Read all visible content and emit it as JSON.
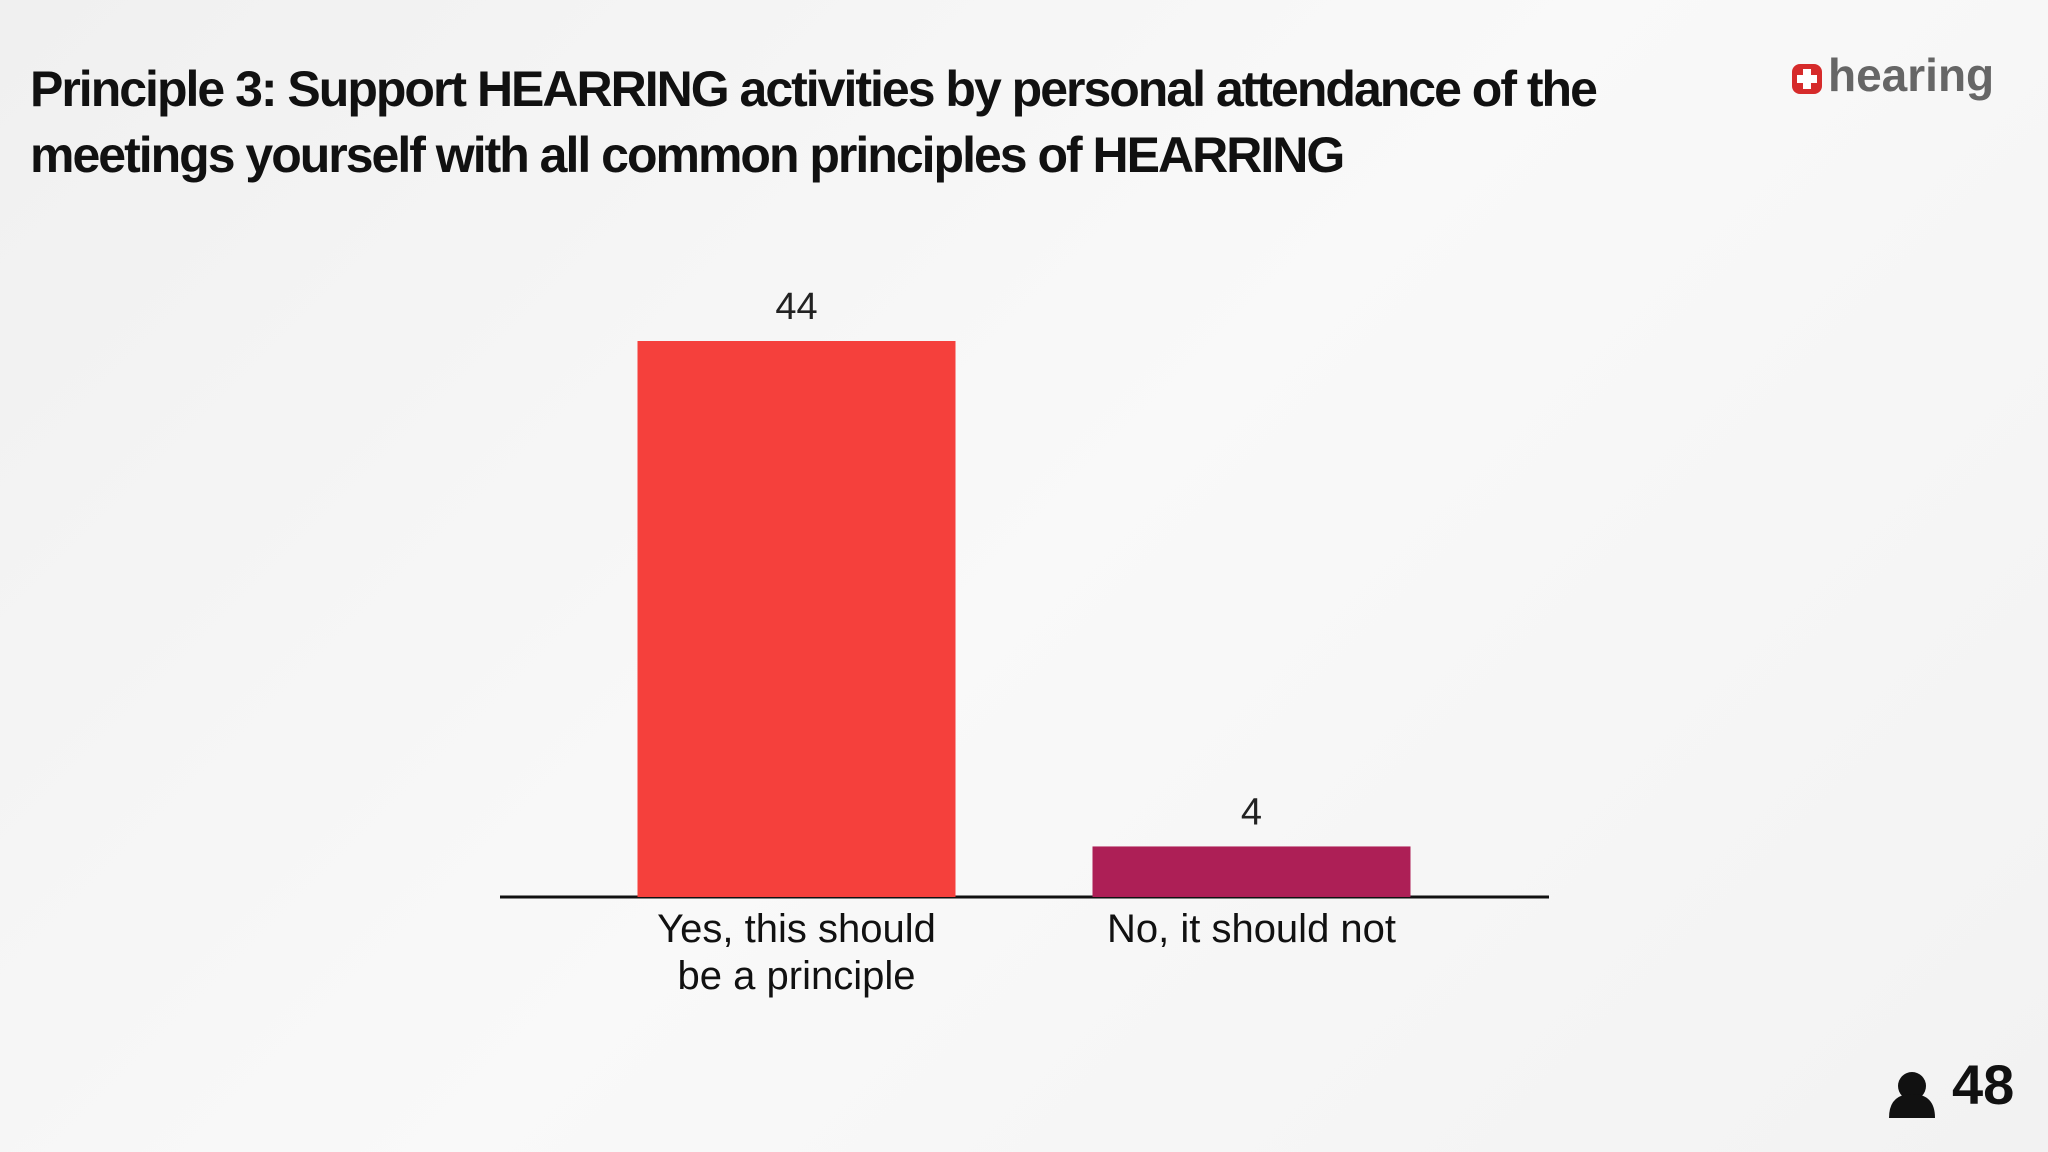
{
  "chart_data": {
    "type": "bar",
    "title": "Principle 3: Support HEARRING activities by personal attendance of the meetings yourself with all common principles of HEARRING",
    "categories": [
      "Yes, this should be a principle",
      "No, it should not"
    ],
    "values": [
      44,
      4
    ],
    "colors": [
      "#f5403c",
      "#ad1f56"
    ],
    "logo": "hearing",
    "participants": 48
  }
}
